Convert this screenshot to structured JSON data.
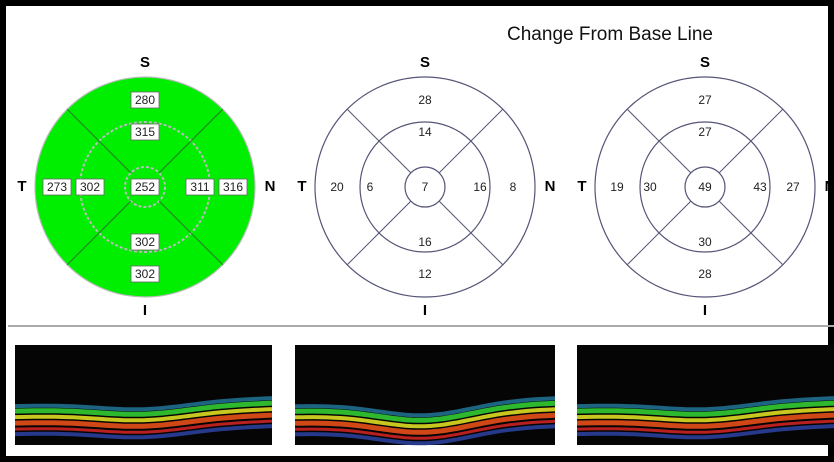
{
  "title": "Change From Base Line",
  "maps": [
    {
      "fill": "#00ee00",
      "labels": {
        "s": "S",
        "i": "I",
        "t": "T",
        "n": "N"
      },
      "sectors": {
        "superior_outer": 280,
        "superior_inner": 315,
        "center": 252,
        "temporal_outer": 273,
        "temporal_inner": 302,
        "nasal_inner": 311,
        "nasal_outer": 316,
        "inferior_inner": 302,
        "inferior_outer": 302
      }
    },
    {
      "fill": "#ffffff",
      "labels": {
        "s": "S",
        "i": "I",
        "t": "T",
        "n": "N"
      },
      "sectors": {
        "superior_outer": 28,
        "superior_inner": 14,
        "center": 7,
        "temporal_outer": 20,
        "temporal_inner": 6,
        "nasal_inner": 16,
        "nasal_outer": 8,
        "inferior_inner": 16,
        "inferior_outer": 12
      }
    },
    {
      "fill": "#ffffff",
      "labels": {
        "s": "S",
        "i": "I",
        "t": "T",
        "n": "N"
      },
      "sectors": {
        "superior_outer": 27,
        "superior_inner": 27,
        "center": 49,
        "temporal_outer": 19,
        "temporal_inner": 30,
        "nasal_inner": 43,
        "nasal_outer": 27,
        "inferior_inner": 30,
        "inferior_outer": 28
      }
    }
  ]
}
